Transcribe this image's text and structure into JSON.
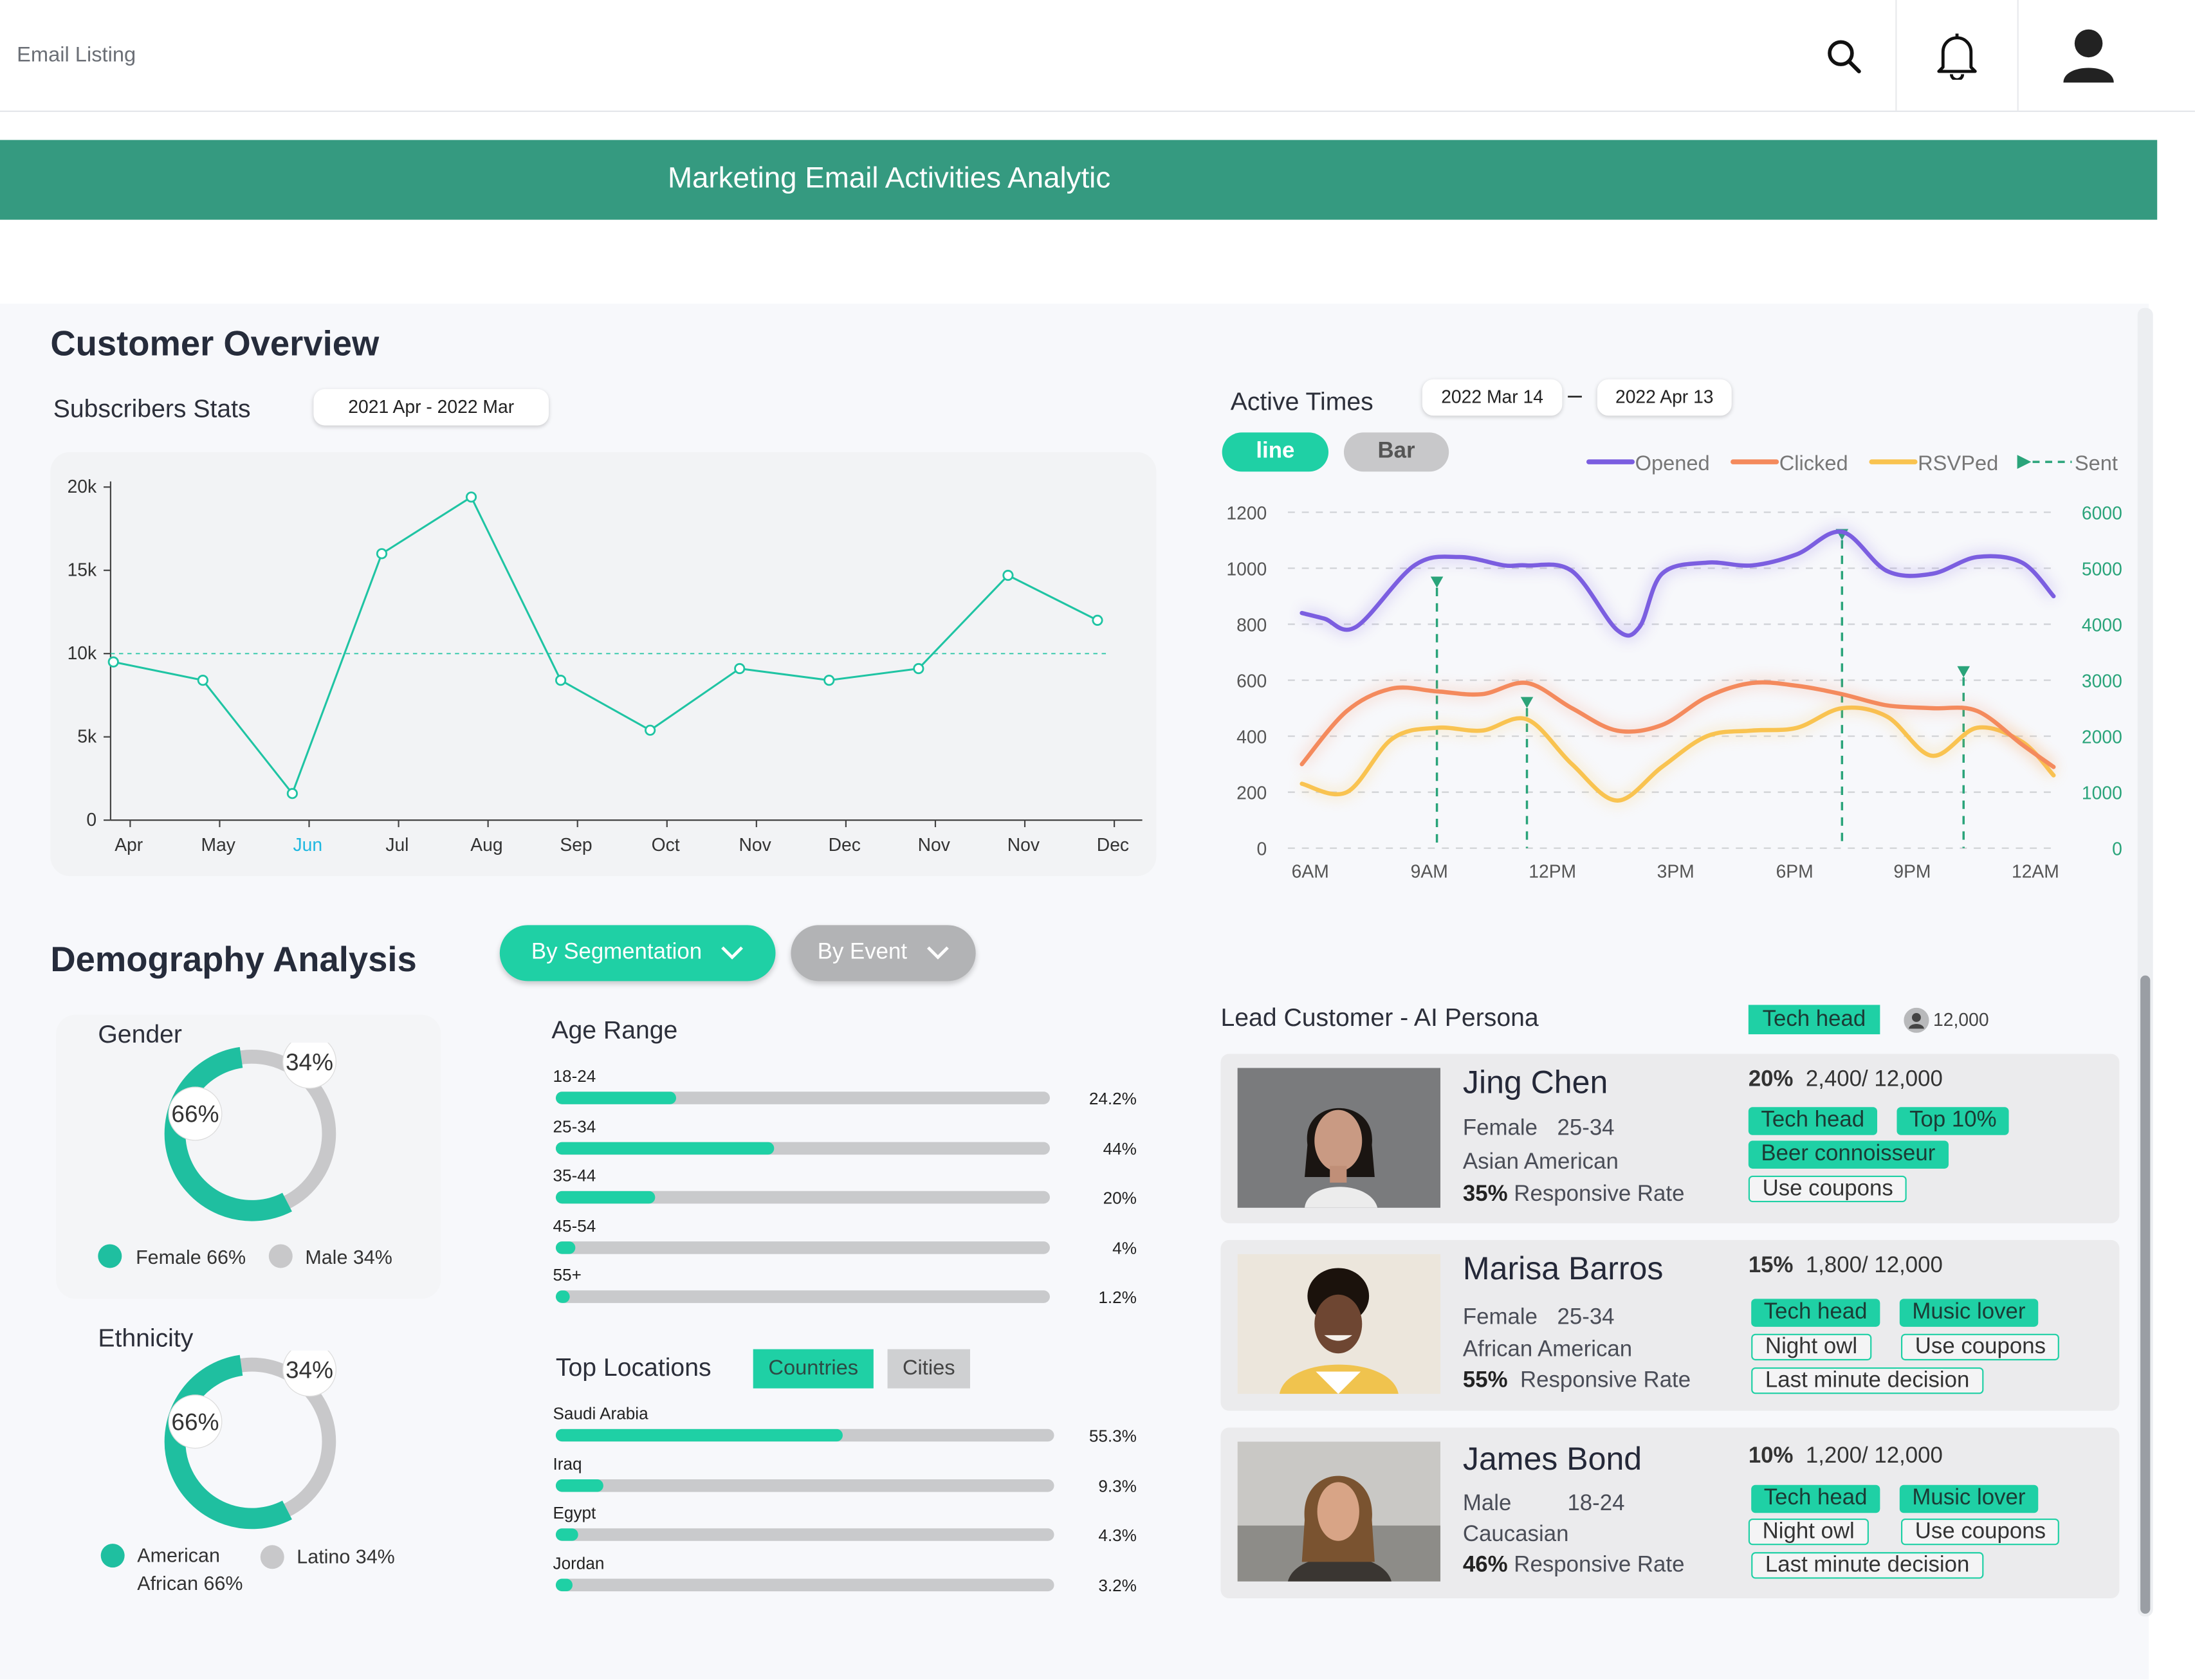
{
  "app_title": "Email Listing",
  "icons": {
    "search": "search-icon",
    "bell": "bell-icon",
    "user": "user-icon"
  },
  "banner_title": "Marketing Email Activities Analytic",
  "customer_overview": {
    "title": "Customer Overview",
    "subscribers_title": "Subscribers Stats",
    "date_range": "2021 Apr - 2022 Mar"
  },
  "active_times": {
    "title": "Active Times",
    "date_from": "2022 Mar 14",
    "date_sep": "–",
    "date_to": "2022 Apr 13",
    "toggle_line": "line",
    "toggle_bar": "Bar"
  },
  "demography": {
    "title": "Demography Analysis",
    "btn_segmentation": "By Segmentation",
    "btn_event": "By Event",
    "gender": {
      "title": "Gender",
      "female_value": 66,
      "male_value": 34,
      "female_pct_label": "66%",
      "male_pct_label": "34%",
      "legend_female": "Female 66%",
      "legend_male": "Male 34%"
    },
    "ethnicity": {
      "title": "Ethnicity",
      "american_value": 66,
      "latino_value": 34,
      "american_pct_label": "66%",
      "latino_pct_label": "34%",
      "legend_american_1": "American",
      "legend_american_2": "African 66%",
      "legend_latino": "Latino 34%"
    },
    "age_range": {
      "title": "Age Range",
      "items": [
        {
          "label": "18-24",
          "value": 24.2,
          "display": "24.2%"
        },
        {
          "label": "25-34",
          "value": 44,
          "display": "44%"
        },
        {
          "label": "35-44",
          "value": 20,
          "display": "20%"
        },
        {
          "label": "45-54",
          "value": 4,
          "display": "4%"
        },
        {
          "label": "55+",
          "value": 1.2,
          "display": "1.2%"
        }
      ]
    },
    "top_locations": {
      "title": "Top Locations",
      "tab_countries": "Countries",
      "tab_cities": "Cities",
      "items": [
        {
          "label": "Saudi Arabia",
          "value": 55.3,
          "display": "55.3%"
        },
        {
          "label": "Iraq",
          "value": 9.3,
          "display": "9.3%"
        },
        {
          "label": "Egypt",
          "value": 4.3,
          "display": "4.3%"
        },
        {
          "label": "Jordan",
          "value": 3.2,
          "display": "3.2%"
        }
      ]
    }
  },
  "lead_customer": {
    "title": "Lead Customer - AI Persona",
    "filter_tag": "Tech head",
    "filter_count": "12,000",
    "cards": [
      {
        "name": "Jing Chen",
        "gender": "Female",
        "age": "25-34",
        "ethnicity": "Asian American",
        "rate_pct": "35%",
        "rate_label": "Responsive Rate",
        "share": "20%",
        "count": "2,400/ 12,000",
        "tags_filled": [
          "Tech head",
          "Top 10%",
          "Beer connoisseur"
        ],
        "tags_outline": [
          "Use coupons"
        ]
      },
      {
        "name": "Marisa Barros",
        "gender": "Female",
        "age": "25-34",
        "ethnicity": "African American",
        "rate_pct": "55%",
        "rate_label": "Responsive Rate",
        "share": "15%",
        "count": "1,800/ 12,000",
        "tags_filled": [
          "Tech head",
          "Music lover"
        ],
        "tags_outline": [
          "Night owl",
          "Use coupons",
          "Last minute decision"
        ]
      },
      {
        "name": "James Bond",
        "gender": "Male",
        "age": "18-24",
        "ethnicity": "Caucasian",
        "rate_pct": "46%",
        "rate_label": "Responsive Rate",
        "share": "10%",
        "count": "1,200/ 12,000",
        "tags_filled": [
          "Tech head",
          "Music lover"
        ],
        "tags_outline": [
          "Night owl",
          "Use coupons",
          "Last minute decision"
        ]
      }
    ]
  },
  "chart_data": [
    {
      "type": "line",
      "categories": [
        "Apr",
        "May",
        "Jun",
        "Jul",
        "Aug",
        "Sep",
        "Oct",
        "Nov",
        "Dec",
        "Nov",
        "Nov",
        "Dec"
      ],
      "values": [
        9500,
        8400,
        1600,
        16000,
        19400,
        8400,
        5400,
        9100,
        8400,
        9100,
        14700,
        12000
      ],
      "y_ticks": [
        "0",
        "5k",
        "10k",
        "15k",
        "20k"
      ],
      "ylim": [
        0,
        20000
      ],
      "reference_line": 10000,
      "highlight_category_index": 2,
      "color": "#1fc4a3",
      "highlight_color": "#1fb8e0"
    },
    {
      "type": "line",
      "x_ticks": [
        "6AM",
        "9AM",
        "12PM",
        "3PM",
        "6PM",
        "9PM",
        "12AM"
      ],
      "y_left_ticks": [
        "0",
        "200",
        "400",
        "600",
        "800",
        "1000",
        "1200"
      ],
      "y_right_ticks": [
        "0",
        "1000",
        "2000",
        "3000",
        "4000",
        "5000",
        "6000"
      ],
      "ylim_left": [
        0,
        1200
      ],
      "ylim_right": [
        0,
        6000
      ],
      "legend": [
        "Opened",
        "Clicked",
        "RSVPed",
        "Sent"
      ],
      "series": [
        {
          "name": "Opened",
          "color": "#7b5ee0",
          "x": [
            0,
            0.5,
            1.2,
            2.5,
            3.5,
            4.5,
            5,
            6,
            7,
            7.5,
            8,
            9,
            10,
            11,
            12,
            13,
            14,
            15,
            16,
            16.7
          ],
          "y": [
            840,
            820,
            790,
            1010,
            1040,
            1010,
            1010,
            990,
            780,
            790,
            980,
            1020,
            1010,
            1050,
            1130,
            990,
            980,
            1040,
            1020,
            900
          ]
        },
        {
          "name": "Clicked",
          "color": "#f48a5d",
          "x": [
            0,
            1,
            2,
            3,
            4,
            5,
            6,
            7,
            8,
            9,
            10,
            11,
            12,
            13,
            14,
            15,
            16,
            16.7
          ],
          "y": [
            300,
            490,
            570,
            560,
            550,
            590,
            500,
            420,
            440,
            540,
            590,
            580,
            550,
            510,
            500,
            490,
            370,
            290
          ]
        },
        {
          "name": "RSVPed",
          "color": "#f9c350",
          "x": [
            0,
            1,
            2,
            3,
            4,
            5,
            6,
            7,
            8,
            9,
            10,
            11,
            12,
            13,
            14,
            15,
            16,
            16.7
          ],
          "y": [
            230,
            200,
            390,
            430,
            420,
            460,
            300,
            170,
            290,
            400,
            420,
            430,
            500,
            470,
            330,
            430,
            380,
            260
          ]
        },
        {
          "name": "Sent",
          "color": "#2aa47a",
          "markers_x": [
            3,
            5,
            12,
            14.7
          ],
          "markers_y_right": [
            4750,
            2600,
            5600,
            3150
          ]
        }
      ]
    }
  ]
}
